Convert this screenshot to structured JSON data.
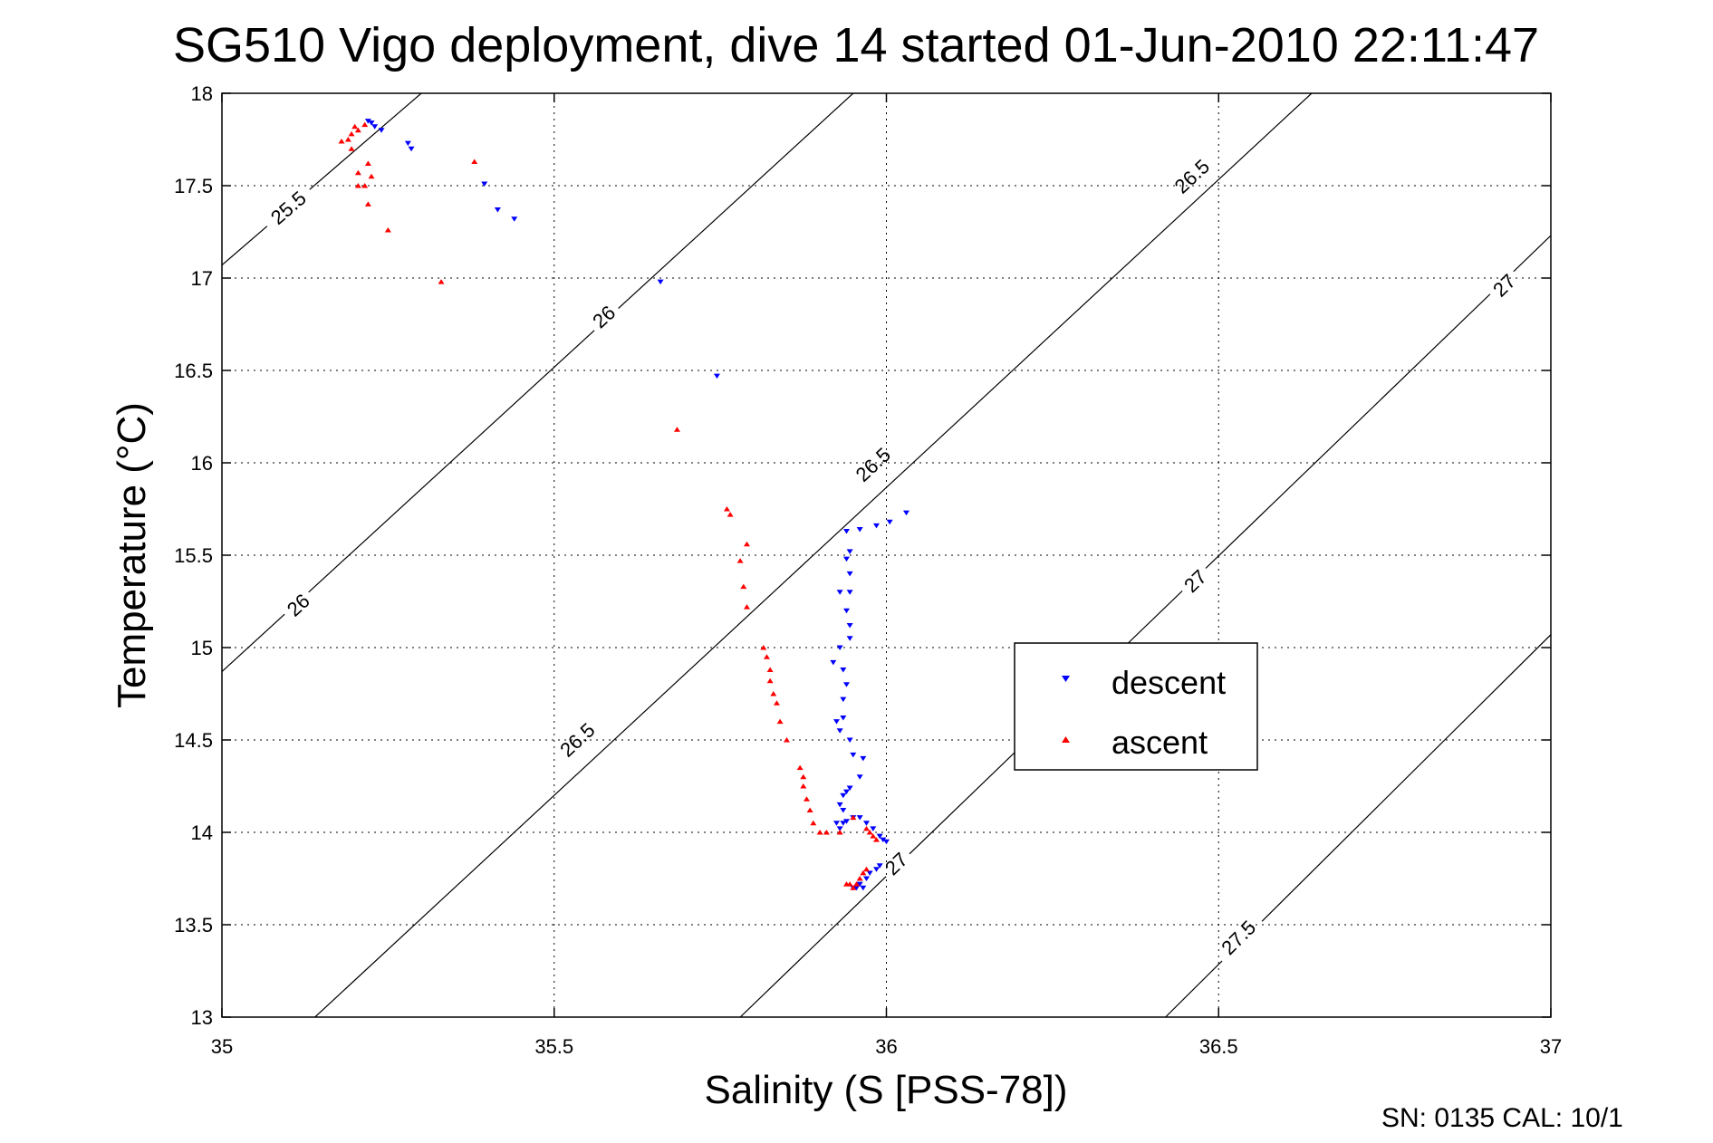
{
  "chart_data": {
    "type": "scatter",
    "title": "SG510 Vigo deployment, dive 14 started 01-Jun-2010 22:11:47",
    "xlabel": "Salinity (S [PSS-78])",
    "ylabel": "Temperature (°C)",
    "xlim": [
      35,
      37
    ],
    "ylim": [
      13,
      18
    ],
    "xticks": [
      "35",
      "35.5",
      "36",
      "36.5",
      "37"
    ],
    "yticks": [
      "13",
      "13.5",
      "14",
      "14.5",
      "15",
      "15.5",
      "16",
      "16.5",
      "17",
      "17.5",
      "18"
    ],
    "grid": true,
    "legend_position": "right-center",
    "footer": "SN: 0135  CAL: 10/1",
    "colors": {
      "descent": "#0000ff",
      "ascent": "#ff0000",
      "contour": "#000000"
    },
    "series": [
      {
        "name": "descent",
        "marker": "triangle-down",
        "points": [
          [
            35.22,
            17.85
          ],
          [
            35.225,
            17.84
          ],
          [
            35.23,
            17.82
          ],
          [
            35.24,
            17.8
          ],
          [
            35.28,
            17.73
          ],
          [
            35.285,
            17.7
          ],
          [
            35.395,
            17.51
          ],
          [
            35.415,
            17.37
          ],
          [
            35.44,
            17.32
          ],
          [
            35.66,
            16.98
          ],
          [
            35.745,
            16.47
          ],
          [
            36.03,
            15.73
          ],
          [
            36.005,
            15.68
          ],
          [
            35.985,
            15.66
          ],
          [
            35.96,
            15.64
          ],
          [
            35.94,
            15.63
          ],
          [
            35.945,
            15.52
          ],
          [
            35.94,
            15.48
          ],
          [
            35.945,
            15.4
          ],
          [
            35.93,
            15.3
          ],
          [
            35.945,
            15.3
          ],
          [
            35.94,
            15.2
          ],
          [
            35.945,
            15.12
          ],
          [
            35.93,
            15.0
          ],
          [
            35.945,
            15.05
          ],
          [
            35.92,
            14.92
          ],
          [
            35.935,
            14.88
          ],
          [
            35.94,
            14.8
          ],
          [
            35.935,
            14.72
          ],
          [
            35.935,
            14.62
          ],
          [
            35.925,
            14.6
          ],
          [
            35.93,
            14.55
          ],
          [
            35.945,
            14.5
          ],
          [
            35.95,
            14.42
          ],
          [
            35.965,
            14.4
          ],
          [
            35.96,
            14.3
          ],
          [
            35.935,
            14.2
          ],
          [
            35.94,
            14.22
          ],
          [
            35.945,
            14.24
          ],
          [
            35.93,
            14.15
          ],
          [
            35.935,
            14.12
          ],
          [
            35.935,
            14.05
          ],
          [
            35.925,
            14.05
          ],
          [
            35.93,
            14.02
          ],
          [
            35.94,
            14.06
          ],
          [
            35.95,
            14.08
          ],
          [
            35.96,
            14.08
          ],
          [
            35.97,
            14.05
          ],
          [
            35.98,
            14.02
          ],
          [
            35.99,
            13.98
          ],
          [
            35.995,
            13.96
          ],
          [
            36.0,
            13.95
          ],
          [
            35.99,
            13.82
          ],
          [
            35.985,
            13.8
          ],
          [
            35.975,
            13.78
          ],
          [
            35.97,
            13.75
          ],
          [
            35.96,
            13.72
          ],
          [
            35.955,
            13.7
          ],
          [
            35.965,
            13.7
          ],
          [
            35.95,
            13.7
          ]
        ]
      },
      {
        "name": "ascent",
        "marker": "triangle-up",
        "points": [
          [
            35.215,
            17.83
          ],
          [
            35.2,
            17.82
          ],
          [
            35.205,
            17.8
          ],
          [
            35.195,
            17.78
          ],
          [
            35.19,
            17.75
          ],
          [
            35.18,
            17.74
          ],
          [
            35.195,
            17.7
          ],
          [
            35.22,
            17.62
          ],
          [
            35.205,
            17.57
          ],
          [
            35.225,
            17.55
          ],
          [
            35.215,
            17.5
          ],
          [
            35.205,
            17.5
          ],
          [
            35.22,
            17.4
          ],
          [
            35.25,
            17.26
          ],
          [
            35.38,
            17.63
          ],
          [
            35.33,
            16.98
          ],
          [
            35.685,
            16.18
          ],
          [
            35.76,
            15.75
          ],
          [
            35.765,
            15.72
          ],
          [
            35.79,
            15.56
          ],
          [
            35.78,
            15.47
          ],
          [
            35.785,
            15.33
          ],
          [
            35.79,
            15.22
          ],
          [
            35.815,
            15.0
          ],
          [
            35.82,
            14.95
          ],
          [
            35.825,
            14.88
          ],
          [
            35.825,
            14.82
          ],
          [
            35.83,
            14.75
          ],
          [
            35.835,
            14.7
          ],
          [
            35.84,
            14.6
          ],
          [
            35.85,
            14.5
          ],
          [
            35.87,
            14.35
          ],
          [
            35.875,
            14.3
          ],
          [
            35.875,
            14.25
          ],
          [
            35.88,
            14.18
          ],
          [
            35.885,
            14.12
          ],
          [
            35.89,
            14.05
          ],
          [
            35.9,
            14.0
          ],
          [
            35.91,
            14.0
          ],
          [
            35.93,
            14.0
          ],
          [
            35.95,
            14.08
          ],
          [
            35.97,
            14.02
          ],
          [
            35.975,
            14.0
          ],
          [
            35.98,
            13.98
          ],
          [
            35.985,
            13.96
          ],
          [
            35.97,
            13.8
          ],
          [
            35.965,
            13.78
          ],
          [
            35.96,
            13.75
          ],
          [
            35.955,
            13.72
          ],
          [
            35.95,
            13.7
          ],
          [
            35.945,
            13.72
          ],
          [
            35.94,
            13.72
          ]
        ]
      }
    ],
    "contours": [
      {
        "label": "25.5",
        "points": [
          [
            35.0,
            17.07
          ],
          [
            35.3,
            18.0
          ]
        ],
        "label_positions": [
          [
            35.1,
            17.38
          ]
        ]
      },
      {
        "label": "26",
        "points": [
          [
            35.0,
            14.87
          ],
          [
            35.95,
            18.0
          ]
        ],
        "label_positions": [
          [
            35.115,
            15.23
          ],
          [
            35.575,
            16.79
          ]
        ]
      },
      {
        "label": "26.5",
        "points": [
          [
            35.14,
            13.0
          ],
          [
            36.64,
            18.0
          ]
        ],
        "label_positions": [
          [
            35.535,
            14.5
          ],
          [
            35.98,
            15.99
          ],
          [
            36.46,
            17.55
          ]
        ]
      },
      {
        "label": "27",
        "points": [
          [
            35.78,
            13.0
          ],
          [
            37.0,
            17.23
          ]
        ],
        "label_positions": [
          [
            36.015,
            13.83
          ],
          [
            36.465,
            15.36
          ],
          [
            36.93,
            16.96
          ]
        ]
      },
      {
        "label": "27.5",
        "points": [
          [
            36.42,
            13.0
          ],
          [
            37.0,
            15.07
          ]
        ],
        "label_positions": [
          [
            36.53,
            13.43
          ]
        ]
      }
    ]
  }
}
